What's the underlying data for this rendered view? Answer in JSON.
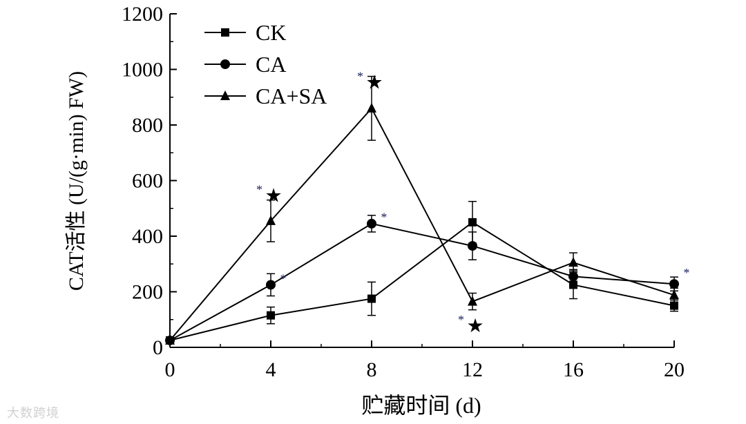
{
  "chart_data": {
    "type": "line",
    "x": [
      0,
      4,
      8,
      12,
      16,
      20
    ],
    "xlabel": "贮藏时间 (d)",
    "ylabel": "CAT活性 (U/(g·min) FW)",
    "xlim": [
      0,
      20
    ],
    "ylim": [
      0,
      1200
    ],
    "xticks": [
      "0",
      "4",
      "8",
      "12",
      "16",
      "20"
    ],
    "yticks": [
      "0",
      "200",
      "400",
      "600",
      "800",
      "1000",
      "1200"
    ],
    "grid": false,
    "legend_position": "top-left",
    "series": [
      {
        "name": "CK",
        "marker": "square",
        "values": [
          25,
          115,
          175,
          450,
          225,
          150
        ],
        "errors": [
          0,
          30,
          60,
          75,
          50,
          20
        ]
      },
      {
        "name": "CA",
        "marker": "circle",
        "values": [
          25,
          225,
          445,
          365,
          255,
          228
        ],
        "errors": [
          0,
          40,
          30,
          50,
          25,
          25
        ]
      },
      {
        "name": "CA+SA",
        "marker": "triangle",
        "values": [
          25,
          455,
          860,
          165,
          305,
          188
        ],
        "errors": [
          0,
          75,
          115,
          30,
          35,
          25
        ]
      }
    ],
    "annotations": [
      {
        "x": 4,
        "y": 548,
        "text": "*★"
      },
      {
        "x": 4,
        "y": 232,
        "text": "*"
      },
      {
        "x": 8,
        "y": 955,
        "text": "*★"
      },
      {
        "x": 8,
        "y": 453,
        "text": "*"
      },
      {
        "x": 12,
        "y": 80,
        "text": "*★"
      },
      {
        "x": 20,
        "y": 253,
        "text": "*"
      }
    ]
  },
  "watermark": "大数跨境"
}
